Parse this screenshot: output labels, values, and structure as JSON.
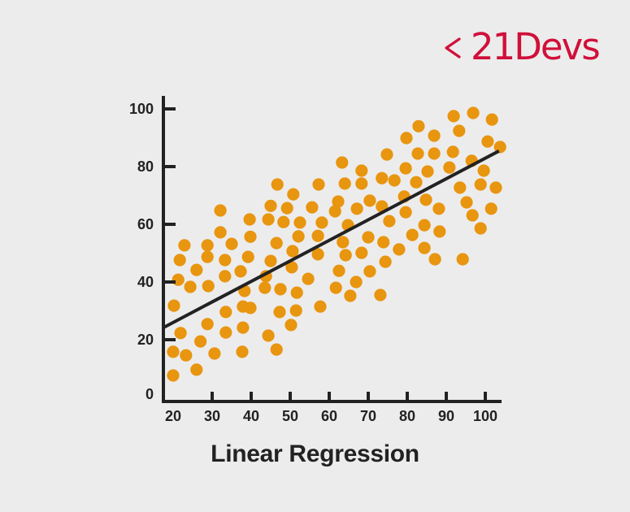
{
  "brand": {
    "chevron": "<",
    "name": "21Devs",
    "color": "#d0103a"
  },
  "chart_data": {
    "type": "scatter",
    "title": "Linear Regression",
    "xlabel": "",
    "ylabel": "",
    "xlim": [
      17.5,
      104
    ],
    "ylim": [
      0,
      100
    ],
    "x_ticks": [
      20,
      30,
      40,
      50,
      60,
      70,
      80,
      90,
      100
    ],
    "y_ticks": [
      0,
      20,
      40,
      60,
      80,
      100
    ],
    "grid": false,
    "legend": null,
    "point_color": "#e8950f",
    "line_color": "#222222",
    "series": [
      {
        "name": "data points",
        "type": "scatter",
        "points": [
          [
            20,
            7.6
          ],
          [
            26,
            9.6
          ],
          [
            20,
            15.8
          ],
          [
            23.3,
            14.6
          ],
          [
            30.6,
            15.2
          ],
          [
            37.7,
            15.8
          ],
          [
            46.5,
            16.6
          ],
          [
            27,
            19.4
          ],
          [
            21.9,
            22.3
          ],
          [
            28.8,
            25.4
          ],
          [
            33.5,
            22.5
          ],
          [
            37.9,
            24.2
          ],
          [
            44.4,
            21.4
          ],
          [
            50.2,
            25.1
          ],
          [
            20.2,
            31.8
          ],
          [
            33.5,
            29.6
          ],
          [
            39.8,
            31
          ],
          [
            47.3,
            29.6
          ],
          [
            51.5,
            30.1
          ],
          [
            37.9,
            31.5
          ],
          [
            57.7,
            31.5
          ],
          [
            21.3,
            40.8
          ],
          [
            24.4,
            38.3
          ],
          [
            29,
            38.6
          ],
          [
            26,
            44.2
          ],
          [
            33.3,
            42
          ],
          [
            38.3,
            36.9
          ],
          [
            43.5,
            38
          ],
          [
            47.5,
            37.5
          ],
          [
            51.7,
            36.3
          ],
          [
            54.6,
            41.1
          ],
          [
            61.7,
            38
          ],
          [
            65.4,
            35.2
          ],
          [
            66.9,
            40
          ],
          [
            73.1,
            35.5
          ],
          [
            21.7,
            47.6
          ],
          [
            22.9,
            52.7
          ],
          [
            28.8,
            48.7
          ],
          [
            28.8,
            52.7
          ],
          [
            33.3,
            47.6
          ],
          [
            35,
            53.2
          ],
          [
            37.3,
            43.7
          ],
          [
            39.2,
            48.7
          ],
          [
            39.8,
            55.7
          ],
          [
            39.6,
            61.7
          ],
          [
            32.1,
            57.2
          ],
          [
            32.1,
            64.8
          ],
          [
            43.8,
            42
          ],
          [
            45,
            47.3
          ],
          [
            46.5,
            53.5
          ],
          [
            44.4,
            61.7
          ],
          [
            45,
            66.4
          ],
          [
            46.7,
            73.8
          ],
          [
            48.3,
            60.8
          ],
          [
            49.2,
            65.6
          ],
          [
            50.8,
            70.4
          ],
          [
            50.6,
            50.7
          ],
          [
            50.4,
            45.1
          ],
          [
            52.1,
            55.8
          ],
          [
            52.5,
            60.6
          ],
          [
            55.6,
            65.9
          ],
          [
            57.3,
            73.8
          ],
          [
            57.1,
            56
          ],
          [
            57.1,
            49.6
          ],
          [
            58.1,
            60.6
          ],
          [
            61.5,
            64.5
          ],
          [
            62.3,
            67.9
          ],
          [
            62.5,
            43.9
          ],
          [
            63.5,
            53.8
          ],
          [
            64.2,
            49.3
          ],
          [
            63.3,
            81.4
          ],
          [
            64,
            74.1
          ],
          [
            64.8,
            59.7
          ],
          [
            67.1,
            65.4
          ],
          [
            68.3,
            78.6
          ],
          [
            68.3,
            74.1
          ],
          [
            68.3,
            50.1
          ],
          [
            70.4,
            43.7
          ],
          [
            70.4,
            68.2
          ],
          [
            70,
            55.5
          ],
          [
            73.5,
            76
          ],
          [
            73.5,
            66.2
          ],
          [
            73.9,
            53.8
          ],
          [
            74.4,
            47
          ],
          [
            74.8,
            84.2
          ],
          [
            75.4,
            61.1
          ],
          [
            76.7,
            75.2
          ],
          [
            77.9,
            51.3
          ],
          [
            79.2,
            69.6
          ],
          [
            79.6,
            64.2
          ],
          [
            79.6,
            79.4
          ],
          [
            79.8,
            89.9
          ],
          [
            81.3,
            56.3
          ],
          [
            82.3,
            74.6
          ],
          [
            82.9,
            94
          ],
          [
            82.7,
            84.5
          ],
          [
            84.4,
            59.7
          ],
          [
            84.4,
            51.8
          ],
          [
            84.8,
            68.5
          ],
          [
            85.2,
            78.3
          ],
          [
            86.9,
            84.5
          ],
          [
            86.9,
            90.7
          ],
          [
            87.1,
            47.9
          ],
          [
            88.1,
            65.4
          ],
          [
            88.3,
            57.5
          ],
          [
            90.8,
            79.7
          ],
          [
            91.7,
            85.1
          ],
          [
            91.9,
            97.5
          ],
          [
            93.3,
            92.4
          ],
          [
            93.5,
            72.7
          ],
          [
            94.2,
            47.9
          ],
          [
            95.2,
            67.6
          ],
          [
            96.5,
            82
          ],
          [
            96.7,
            63.1
          ],
          [
            96.9,
            98.6
          ],
          [
            98.8,
            58.6
          ],
          [
            98.8,
            73.8
          ],
          [
            99.6,
            78.6
          ],
          [
            100.6,
            88.7
          ],
          [
            101.5,
            65.4
          ],
          [
            101.7,
            96.3
          ],
          [
            102.7,
            72.7
          ],
          [
            103.8,
            86.8
          ]
        ]
      },
      {
        "name": "regression line",
        "type": "line",
        "x": [
          17.5,
          103.5
        ],
        "y": [
          24.2,
          85.4
        ]
      }
    ]
  }
}
